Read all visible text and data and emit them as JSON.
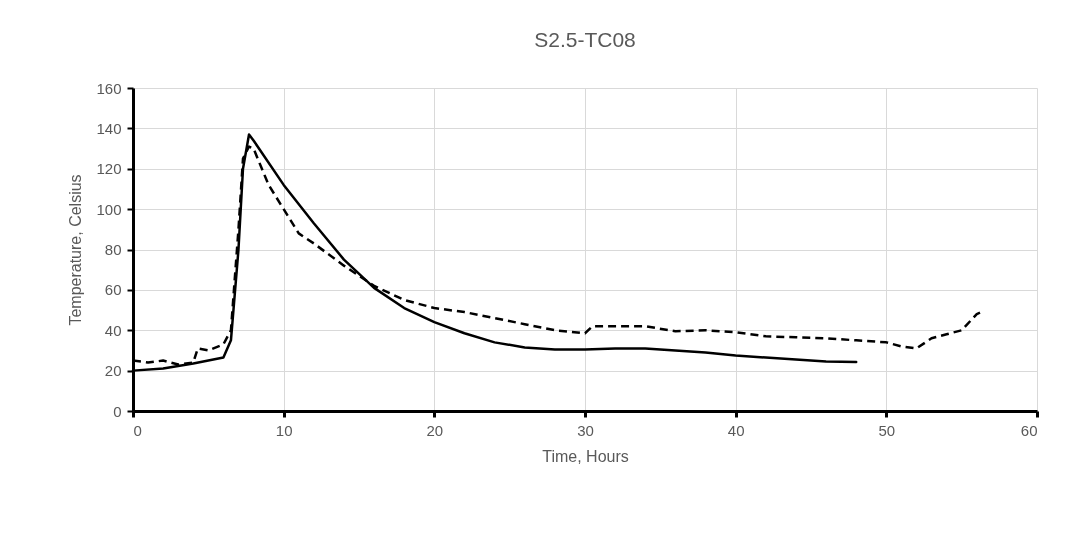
{
  "chart_data": {
    "type": "line",
    "title": "S2.5-TC08",
    "xlabel": "Time, Hours",
    "ylabel": "Temperature, Celsius",
    "xlim": [
      0,
      60
    ],
    "xticks": [
      0,
      10,
      20,
      30,
      40,
      50,
      60
    ],
    "ylim": [
      0,
      160
    ],
    "yticks": [
      0,
      20,
      40,
      60,
      80,
      100,
      120,
      140,
      160
    ],
    "grid": true,
    "legend": false,
    "marker": "none",
    "series": [
      {
        "color": "#000000",
        "line_style": "solid",
        "x": [
          0,
          2,
          4,
          6,
          6.5,
          7,
          7.3,
          7.7,
          8,
          10,
          12,
          14,
          16,
          18,
          20,
          22,
          24,
          26,
          28,
          30,
          32,
          34,
          36,
          38,
          40,
          42,
          44,
          46,
          48
        ],
        "values": [
          20,
          21,
          23.5,
          26.5,
          35,
          80,
          120,
          137,
          134,
          112,
          93,
          75,
          61,
          51,
          44,
          38.5,
          34,
          31.5,
          30.5,
          30.5,
          31,
          31,
          30,
          29,
          27.5,
          26.5,
          25.5,
          24.5,
          24.3
        ]
      },
      {
        "color": "#000000",
        "line_style": "dashed",
        "x": [
          0,
          1,
          2,
          3,
          4,
          4.3,
          5,
          6,
          6.5,
          7,
          7.3,
          7.7,
          8,
          9,
          10,
          11,
          12,
          14,
          16,
          18,
          20,
          22,
          24,
          26,
          28,
          30,
          30.5,
          32,
          34,
          36,
          38,
          40,
          42,
          44,
          46,
          48,
          50,
          51,
          52,
          53,
          54,
          55,
          56,
          56.3
        ],
        "values": [
          25,
          24,
          25,
          23,
          24,
          31,
          30,
          33,
          40,
          90,
          125,
          131,
          130,
          112,
          100,
          88,
          83,
          72,
          62,
          55,
          51,
          49,
          46,
          43,
          40,
          38.5,
          42,
          42,
          42,
          39.5,
          40,
          39,
          37,
          36.5,
          36,
          35,
          34,
          32,
          31,
          36,
          38,
          40,
          48,
          49
        ]
      }
    ]
  }
}
